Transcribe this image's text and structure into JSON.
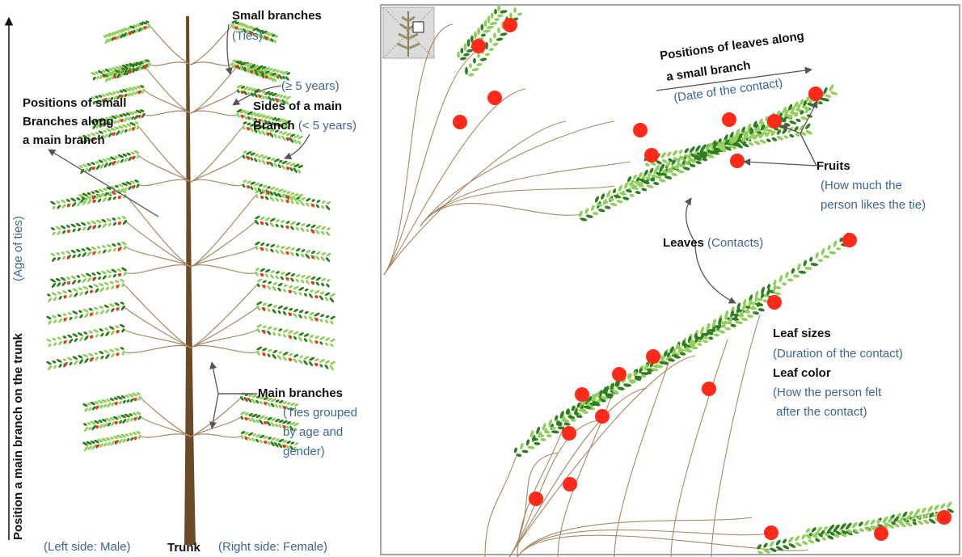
{
  "left_panel": {
    "axis_label": "Position a main branch on the trunk",
    "axis_sublabel": "(Age of ties)",
    "small_branches": {
      "title": "Small branches",
      "sub": "(Ties)"
    },
    "ge5": "(≥ 5 years)",
    "sides": {
      "line1": "Sides of a main",
      "line2": "Branch",
      "sub": "(< 5 years)"
    },
    "positions_small": {
      "line1": "Positions of small",
      "line2": "Branches along",
      "line3": "a main branch"
    },
    "main_branches": {
      "title": "Main branches",
      "sub1": "(Ties grouped",
      "sub2": "by age and",
      "sub3": "gender)"
    },
    "left_side": "(Left side: Male)",
    "trunk": "Trunk",
    "right_side": "(Right side: Female)"
  },
  "right_panel": {
    "positions_leaves": {
      "line1": "Positions of leaves along",
      "line2": "a small branch",
      "sub": "(Date of the contact)"
    },
    "fruits": {
      "title": "Fruits",
      "sub1": "(How much the",
      "sub2": "person likes the tie)"
    },
    "leaves": {
      "title": "Leaves",
      "sub": "(Contacts)"
    },
    "leaf_sizes": {
      "title": "Leaf sizes",
      "sub": "(Duration of the contact)"
    },
    "leaf_color": {
      "title": "Leaf color",
      "sub1": "(How the person felt",
      "sub2": "after the contact)"
    }
  },
  "colors": {
    "trunk": "#6b4a25",
    "branch": "#a58a66",
    "leaf_dark": "#2e7d1e",
    "leaf_light": "#8fcf5a",
    "fruit": "#ff2a1a",
    "label_blue": "#3e6593",
    "arrow": "#555555"
  }
}
